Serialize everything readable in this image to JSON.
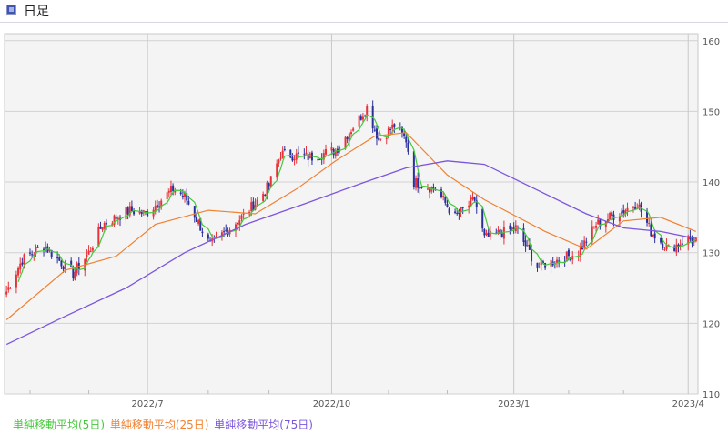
{
  "header": {
    "title": "日足",
    "icon": "chart-window-icon"
  },
  "chart_data": {
    "type": "candlestick",
    "title": "",
    "y_ticks": [
      110,
      120,
      130,
      140,
      150,
      160
    ],
    "ylim": [
      110,
      161
    ],
    "x_tick_labels": [
      "2022/7",
      "2022/10",
      "2023/1",
      "2023/4"
    ],
    "colors": {
      "up": "#e8323a",
      "down": "#2a2f9c",
      "ma5": "#46c83c",
      "ma25": "#f08232",
      "ma75": "#7d55dc"
    },
    "legend": [
      "単純移動平均(5日)",
      "単純移動平均(25日)",
      "単純移動平均(75日)"
    ],
    "price_path": [
      [
        "2022-04-20",
        124.5
      ],
      [
        "2022-04-28",
        129.0
      ],
      [
        "2022-05-09",
        131.0
      ],
      [
        "2022-05-24",
        127.0
      ],
      [
        "2022-06-01",
        130.0
      ],
      [
        "2022-06-08",
        134.0
      ],
      [
        "2022-06-22",
        136.0
      ],
      [
        "2022-06-30",
        135.5
      ],
      [
        "2022-07-14",
        139.0
      ],
      [
        "2022-07-20",
        138.0
      ],
      [
        "2022-08-02",
        131.0
      ],
      [
        "2022-08-10",
        133.0
      ],
      [
        "2022-08-18",
        135.0
      ],
      [
        "2022-08-25",
        137.0
      ],
      [
        "2022-09-01",
        139.5
      ],
      [
        "2022-09-07",
        144.0
      ],
      [
        "2022-09-22",
        143.5
      ],
      [
        "2022-10-05",
        144.5
      ],
      [
        "2022-10-21",
        150.5
      ],
      [
        "2022-10-27",
        146.0
      ],
      [
        "2022-11-04",
        148.0
      ],
      [
        "2022-11-10",
        146.0
      ],
      [
        "2022-11-14",
        140.0
      ],
      [
        "2022-11-25",
        139.0
      ],
      [
        "2022-12-05",
        135.0
      ],
      [
        "2022-12-15",
        137.5
      ],
      [
        "2022-12-20",
        132.0
      ],
      [
        "2023-01-05",
        133.5
      ],
      [
        "2023-01-16",
        128.0
      ],
      [
        "2023-02-06",
        130.0
      ],
      [
        "2023-02-15",
        134.0
      ],
      [
        "2023-03-08",
        137.0
      ],
      [
        "2023-03-15",
        133.0
      ],
      [
        "2023-03-24",
        130.5
      ],
      [
        "2023-04-03",
        132.0
      ],
      [
        "2023-04-07",
        131.5
      ]
    ],
    "ma25_path": [
      [
        "2022-04-20",
        120.5
      ],
      [
        "2022-05-20",
        127.5
      ],
      [
        "2022-06-15",
        129.5
      ],
      [
        "2022-07-05",
        134.0
      ],
      [
        "2022-08-01",
        136.0
      ],
      [
        "2022-08-25",
        135.5
      ],
      [
        "2022-09-15",
        139.0
      ],
      [
        "2022-10-05",
        143.0
      ],
      [
        "2022-10-25",
        146.5
      ],
      [
        "2022-11-10",
        147.0
      ],
      [
        "2022-12-01",
        141.0
      ],
      [
        "2022-12-20",
        137.5
      ],
      [
        "2023-01-20",
        133.0
      ],
      [
        "2023-02-10",
        130.5
      ],
      [
        "2023-03-01",
        134.5
      ],
      [
        "2023-03-20",
        135.0
      ],
      [
        "2023-04-07",
        133.0
      ]
    ],
    "ma75_path": [
      [
        "2022-04-20",
        117.0
      ],
      [
        "2022-05-20",
        121.0
      ],
      [
        "2022-06-20",
        125.0
      ],
      [
        "2022-07-20",
        130.0
      ],
      [
        "2022-08-20",
        134.0
      ],
      [
        "2022-09-20",
        137.0
      ],
      [
        "2022-10-20",
        140.0
      ],
      [
        "2022-11-10",
        142.0
      ],
      [
        "2022-12-01",
        143.0
      ],
      [
        "2022-12-20",
        142.5
      ],
      [
        "2023-01-15",
        139.0
      ],
      [
        "2023-02-10",
        135.5
      ],
      [
        "2023-03-01",
        133.5
      ],
      [
        "2023-03-20",
        133.0
      ],
      [
        "2023-04-07",
        132.0
      ]
    ]
  }
}
